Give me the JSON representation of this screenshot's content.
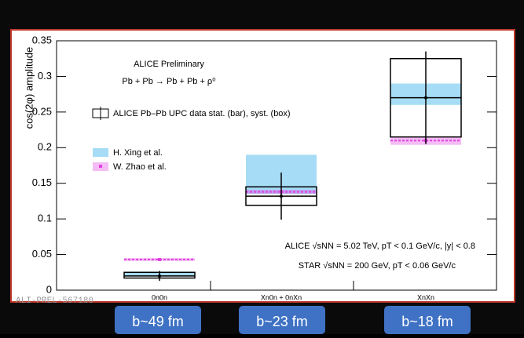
{
  "chart_data": {
    "type": "errorbar",
    "y_label": "cos(2φ) amplitude",
    "annotations": [
      "ALICE Preliminary",
      "Pb + Pb → Pb + Pb + ρ⁰",
      "ALICE √sNN = 5.02 TeV, pT < 0.1 GeV/c, |y| < 0.8",
      "STAR √sNN = 200 GeV, pT < 0.06 GeV/c"
    ],
    "watermark": "ALI-PREL-567180",
    "categories": [
      "0n0n",
      "Xn0n + 0nXn",
      "XnXn"
    ],
    "ylim": [
      0,
      0.35
    ],
    "yticks": [
      0,
      0.05,
      0.1,
      0.15,
      0.2,
      0.25,
      0.3,
      0.35
    ],
    "series": [
      {
        "name": "ALICE Pb–Pb UPC data stat. (bar), syst. (box)",
        "color": "#000000",
        "values": [
          0.02,
          0.132,
          0.27
        ],
        "errors": [
          0.007,
          0.033,
          0.065
        ],
        "syst_low": [
          0.017,
          0.119,
          0.215
        ],
        "syst_high": [
          0.025,
          0.145,
          0.325
        ]
      },
      {
        "name": "H. Xing et al.",
        "color": "#a6dcf5",
        "low": [
          0.019,
          0.135,
          0.26
        ],
        "high": [
          0.026,
          0.19,
          0.29
        ]
      },
      {
        "name": "W. Zhao et al.",
        "color": "#e040e0",
        "values": [
          0.043,
          0.138,
          0.21
        ],
        "errors": [
          0.002,
          0.003,
          0.006
        ]
      }
    ]
  },
  "footer": {
    "labels": [
      "b~49 fm",
      "b~23 fm",
      "b~18 fm"
    ]
  }
}
